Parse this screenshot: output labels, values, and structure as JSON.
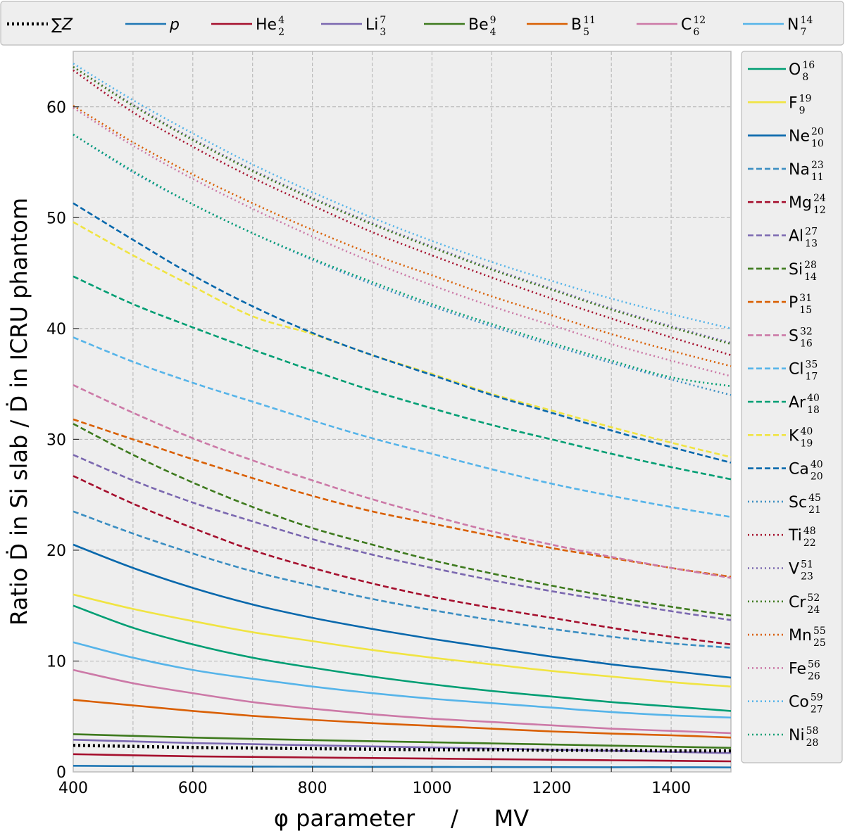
{
  "chart_data": {
    "type": "line",
    "title": "",
    "xlabel": "φ parameter     /     MV",
    "ylabel": "Ratio Ḋ in Si slab / Ḋ in ICRU phantom",
    "xlim": [
      400,
      1500
    ],
    "ylim": [
      0,
      65
    ],
    "grid": true,
    "x_ticks": [
      "400",
      "600",
      "800",
      "1000",
      "1200",
      "1400"
    ],
    "y_ticks": [
      "0",
      "10",
      "20",
      "30",
      "40",
      "50",
      "60"
    ],
    "x": [
      400,
      500,
      600,
      700,
      800,
      900,
      1000,
      1100,
      1200,
      1300,
      1400,
      1500
    ],
    "legend_top": [
      "sumZ",
      "p",
      "He",
      "Li",
      "Be",
      "B",
      "C",
      "N"
    ],
    "legend_right": [
      "O",
      "F",
      "Ne",
      "Na",
      "Mg",
      "Al",
      "Si",
      "P",
      "S",
      "Cl",
      "Ar",
      "K",
      "Ca",
      "Sc",
      "Ti",
      "V",
      "Cr",
      "Mn",
      "Fe",
      "Co",
      "Ni"
    ],
    "series": [
      {
        "id": "sumZ",
        "name": "∑Z",
        "sym": "",
        "A": "",
        "Z": "",
        "color": "#000000",
        "dash": "dot-bold",
        "values": [
          2.4,
          2.3,
          2.2,
          2.15,
          2.1,
          2.05,
          2.0,
          2.0,
          1.95,
          1.95,
          1.9,
          1.9
        ]
      },
      {
        "id": "p",
        "name": "p",
        "sym": "",
        "A": "",
        "Z": "",
        "color": "#1f77b4",
        "dash": "solid",
        "values": [
          0.55,
          0.52,
          0.5,
          0.48,
          0.47,
          0.46,
          0.45,
          0.44,
          0.43,
          0.42,
          0.42,
          0.4
        ]
      },
      {
        "id": "He",
        "name": "He",
        "sym": "He",
        "A": "4",
        "Z": "2",
        "color": "#a50f2d",
        "dash": "solid",
        "values": [
          1.6,
          1.5,
          1.4,
          1.35,
          1.3,
          1.25,
          1.2,
          1.15,
          1.1,
          1.05,
          1.0,
          0.95
        ]
      },
      {
        "id": "Li",
        "name": "Li",
        "sym": "Li",
        "A": "7",
        "Z": "3",
        "color": "#7b68b0",
        "dash": "solid",
        "values": [
          2.9,
          2.75,
          2.6,
          2.5,
          2.4,
          2.3,
          2.2,
          2.1,
          2.0,
          1.9,
          1.8,
          1.7
        ]
      },
      {
        "id": "Be",
        "name": "Be",
        "sym": "Be",
        "A": "9",
        "Z": "4",
        "color": "#3e7a1e",
        "dash": "solid",
        "values": [
          3.4,
          3.25,
          3.1,
          2.98,
          2.87,
          2.77,
          2.67,
          2.57,
          2.47,
          2.37,
          2.27,
          2.17
        ]
      },
      {
        "id": "B",
        "name": "B",
        "sym": "B",
        "A": "11",
        "Z": "5",
        "color": "#d95f02",
        "dash": "solid",
        "values": [
          6.5,
          6.0,
          5.5,
          5.05,
          4.7,
          4.4,
          4.15,
          3.9,
          3.65,
          3.45,
          3.3,
          3.1
        ]
      },
      {
        "id": "C",
        "name": "C",
        "sym": "C",
        "A": "12",
        "Z": "6",
        "color": "#cc79a7",
        "dash": "solid",
        "values": [
          9.2,
          8.0,
          7.1,
          6.3,
          5.7,
          5.2,
          4.8,
          4.5,
          4.2,
          3.9,
          3.7,
          3.5
        ]
      },
      {
        "id": "N",
        "name": "N",
        "sym": "N",
        "A": "14",
        "Z": "7",
        "color": "#56b4e9",
        "dash": "solid",
        "values": [
          11.7,
          10.3,
          9.2,
          8.4,
          7.7,
          7.1,
          6.6,
          6.2,
          5.8,
          5.4,
          5.1,
          4.9
        ]
      },
      {
        "id": "O",
        "name": "O",
        "sym": "O",
        "A": "16",
        "Z": "8",
        "color": "#009e73",
        "dash": "solid",
        "values": [
          15.0,
          13.0,
          11.5,
          10.3,
          9.4,
          8.6,
          7.9,
          7.3,
          6.8,
          6.3,
          5.9,
          5.5
        ]
      },
      {
        "id": "F",
        "name": "F",
        "sym": "F",
        "A": "19",
        "Z": "9",
        "color": "#f0e442",
        "dash": "solid",
        "values": [
          16.0,
          14.7,
          13.6,
          12.6,
          11.8,
          11.0,
          10.3,
          9.7,
          9.1,
          8.6,
          8.1,
          7.7
        ]
      },
      {
        "id": "Ne",
        "name": "Ne",
        "sym": "Ne",
        "A": "20",
        "Z": "10",
        "color": "#0868ac",
        "dash": "solid",
        "values": [
          20.5,
          18.4,
          16.6,
          15.1,
          13.9,
          12.9,
          12.0,
          11.2,
          10.4,
          9.7,
          9.1,
          8.5
        ]
      },
      {
        "id": "Na",
        "name": "Na",
        "sym": "Na",
        "A": "23",
        "Z": "11",
        "color": "#3b8ec2",
        "dash": "dashed",
        "values": [
          23.5,
          21.5,
          19.7,
          18.1,
          16.8,
          15.6,
          14.6,
          13.7,
          12.9,
          12.2,
          11.6,
          11.2
        ]
      },
      {
        "id": "Mg",
        "name": "Mg",
        "sym": "Mg",
        "A": "24",
        "Z": "12",
        "color": "#a50f2d",
        "dash": "dashed",
        "values": [
          26.7,
          24.2,
          22.0,
          20.0,
          18.4,
          17.0,
          15.8,
          14.8,
          13.9,
          13.0,
          12.2,
          11.5
        ]
      },
      {
        "id": "Al",
        "name": "Al",
        "sym": "Al",
        "A": "27",
        "Z": "13",
        "color": "#7b68b0",
        "dash": "dashed",
        "values": [
          28.6,
          26.3,
          24.3,
          22.6,
          21.0,
          19.6,
          18.4,
          17.3,
          16.3,
          15.4,
          14.5,
          13.7
        ]
      },
      {
        "id": "Si",
        "name": "Si",
        "sym": "Si",
        "A": "28",
        "Z": "14",
        "color": "#3e7a1e",
        "dash": "dashed",
        "values": [
          31.4,
          28.6,
          26.1,
          23.9,
          22.0,
          20.5,
          19.1,
          17.9,
          16.8,
          15.8,
          14.9,
          14.1
        ]
      },
      {
        "id": "P",
        "name": "P",
        "sym": "P",
        "A": "31",
        "Z": "15",
        "color": "#d95f02",
        "dash": "dashed",
        "values": [
          31.8,
          30.0,
          28.2,
          26.5,
          24.9,
          23.5,
          22.4,
          21.3,
          20.2,
          19.3,
          18.4,
          17.6
        ]
      },
      {
        "id": "S",
        "name": "S",
        "sym": "S",
        "A": "32",
        "Z": "16",
        "color": "#cc79a7",
        "dash": "dashed",
        "values": [
          34.9,
          32.4,
          30.1,
          28.1,
          26.3,
          24.6,
          23.1,
          21.7,
          20.5,
          19.4,
          18.4,
          17.5
        ]
      },
      {
        "id": "Cl",
        "name": "Cl",
        "sym": "Cl",
        "A": "35",
        "Z": "17",
        "color": "#56b4e9",
        "dash": "dashed",
        "values": [
          39.2,
          37.0,
          35.1,
          33.4,
          31.7,
          30.1,
          28.7,
          27.3,
          26.0,
          24.9,
          23.9,
          23.0
        ]
      },
      {
        "id": "Ar",
        "name": "Ar",
        "sym": "Ar",
        "A": "40",
        "Z": "18",
        "color": "#009e73",
        "dash": "dashed",
        "values": [
          44.7,
          42.2,
          40.1,
          38.1,
          36.2,
          34.4,
          32.8,
          31.3,
          30.0,
          28.7,
          27.5,
          26.4
        ]
      },
      {
        "id": "K",
        "name": "K",
        "sym": "K",
        "A": "40",
        "Z": "19",
        "color": "#f0e442",
        "dash": "dashed",
        "values": [
          49.6,
          46.6,
          43.8,
          41.1,
          39.5,
          37.6,
          35.9,
          34.1,
          32.6,
          31.1,
          29.7,
          28.4
        ]
      },
      {
        "id": "Ca",
        "name": "Ca",
        "sym": "Ca",
        "A": "40",
        "Z": "20",
        "color": "#0868ac",
        "dash": "dashed",
        "values": [
          51.3,
          48.0,
          44.8,
          42.0,
          39.6,
          37.6,
          35.8,
          34.0,
          32.4,
          30.8,
          29.3,
          27.9
        ]
      },
      {
        "id": "Sc",
        "name": "Sc",
        "sym": "Sc",
        "A": "45",
        "Z": "21",
        "color": "#3b8ec2",
        "dash": "dotted",
        "values": [
          57.5,
          54.1,
          51.2,
          48.6,
          46.2,
          44.0,
          42.0,
          40.2,
          38.5,
          36.9,
          35.4,
          34.0
        ]
      },
      {
        "id": "Ti",
        "name": "Ti",
        "sym": "Ti",
        "A": "48",
        "Z": "22",
        "color": "#a50f2d",
        "dash": "dotted",
        "values": [
          63.3,
          59.5,
          56.4,
          53.6,
          51.1,
          48.7,
          46.6,
          44.6,
          42.7,
          40.9,
          39.2,
          37.6
        ]
      },
      {
        "id": "V",
        "name": "V",
        "sym": "V",
        "A": "51",
        "Z": "23",
        "color": "#7b68b0",
        "dash": "dotted",
        "values": [
          63.6,
          60.2,
          57.1,
          54.3,
          51.8,
          49.5,
          47.4,
          45.4,
          43.6,
          41.8,
          40.2,
          38.7
        ]
      },
      {
        "id": "Cr",
        "name": "Cr",
        "sym": "Cr",
        "A": "52",
        "Z": "24",
        "color": "#3e7a1e",
        "dash": "dotted",
        "values": [
          63.6,
          60.1,
          57.0,
          54.2,
          51.7,
          49.4,
          47.3,
          45.3,
          43.5,
          41.7,
          40.1,
          38.6
        ]
      },
      {
        "id": "Mn",
        "name": "Mn",
        "sym": "Mn",
        "A": "55",
        "Z": "25",
        "color": "#d95f02",
        "dash": "dotted",
        "values": [
          60.1,
          56.8,
          53.9,
          51.3,
          48.9,
          46.7,
          44.8,
          42.9,
          41.2,
          39.5,
          38.0,
          36.6
        ]
      },
      {
        "id": "Fe",
        "name": "Fe",
        "sym": "Fe",
        "A": "56",
        "Z": "26",
        "color": "#cc79a7",
        "dash": "dotted",
        "values": [
          59.9,
          56.5,
          53.5,
          50.8,
          48.3,
          46.0,
          43.9,
          42.0,
          40.3,
          38.6,
          37.1,
          35.7
        ]
      },
      {
        "id": "Co",
        "name": "Co",
        "sym": "Co",
        "A": "59",
        "Z": "27",
        "color": "#56b4e9",
        "dash": "dotted",
        "values": [
          63.9,
          60.6,
          57.6,
          54.8,
          52.3,
          50.0,
          47.9,
          46.0,
          44.3,
          42.7,
          41.3,
          40.0
        ]
      },
      {
        "id": "Ni",
        "name": "Ni",
        "sym": "Ni",
        "A": "58",
        "Z": "28",
        "color": "#009e73",
        "dash": "dotted",
        "values": [
          57.5,
          54.2,
          51.2,
          48.6,
          46.3,
          44.2,
          42.2,
          40.4,
          38.7,
          37.1,
          35.6,
          34.8
        ]
      }
    ]
  }
}
